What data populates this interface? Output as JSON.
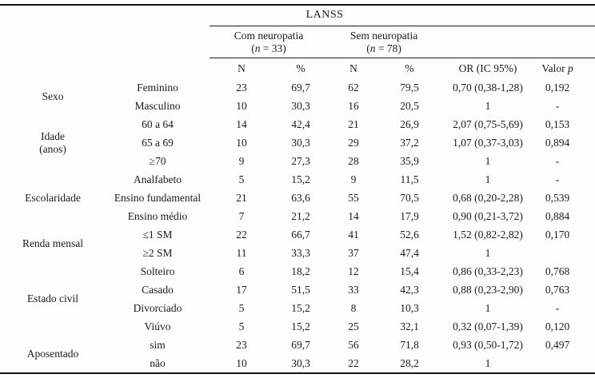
{
  "table": {
    "title": "LANSS",
    "subheaders": {
      "group1": {
        "name": "Com neuropatia",
        "n_pre": "(",
        "n_var": "n",
        "n_post": " = 33)"
      },
      "group2": {
        "name": "Sem neuropatia",
        "n_pre": "(",
        "n_var": "n",
        "n_post": " = 78)"
      }
    },
    "columns": {
      "n1": "N",
      "pct1": "%",
      "n2": "N",
      "pct2": "%",
      "or": "OR (IC 95%)",
      "valorp_pre": "Valor ",
      "valorp_var": "p"
    },
    "groups": [
      {
        "label_lines": [
          "Sexo"
        ],
        "rows": [
          {
            "label": "Feminino",
            "n1": "23",
            "pct1": "69,7",
            "n2": "62",
            "pct2": "79,5",
            "or": "0,70 (0,38-1,28)",
            "p": "0,192"
          },
          {
            "label": "Masculino",
            "n1": "10",
            "pct1": "30,3",
            "n2": "16",
            "pct2": "20,5",
            "or": "1",
            "p": "-"
          }
        ]
      },
      {
        "label_lines": [
          "Idade",
          "(anos)"
        ],
        "rows": [
          {
            "label": "60 a 64",
            "n1": "14",
            "pct1": "42,4",
            "n2": "21",
            "pct2": "26,9",
            "or": "2,07 (0,75-5,69)",
            "p": "0,153"
          },
          {
            "label": "65 a 69",
            "n1": "10",
            "pct1": "30,3",
            "n2": "29",
            "pct2": "37,2",
            "or": "1,07 (0,37-3,03)",
            "p": "0,894"
          },
          {
            "label": "≥70",
            "n1": "9",
            "pct1": "27,3",
            "n2": "28",
            "pct2": "35,9",
            "or": "1",
            "p": "-"
          }
        ]
      },
      {
        "label_lines": [
          "Escolaridade"
        ],
        "rows": [
          {
            "label": "Analfabeto",
            "n1": "5",
            "pct1": "15,2",
            "n2": "9",
            "pct2": "11,5",
            "or": "1",
            "p": "-"
          },
          {
            "label": "Ensino fundamental",
            "n1": "21",
            "pct1": "63,6",
            "n2": "55",
            "pct2": "70,5",
            "or": "0,68 (0,20-2,28)",
            "p": "0,539"
          },
          {
            "label": "Ensino médio",
            "n1": "7",
            "pct1": "21,2",
            "n2": "14",
            "pct2": "17,9",
            "or": "0,90 (0,21-3,72)",
            "p": "0,884"
          }
        ]
      },
      {
        "label_lines": [
          "Renda mensal"
        ],
        "rows": [
          {
            "label": "≤1 SM",
            "n1": "22",
            "pct1": "66,7",
            "n2": "41",
            "pct2": "52,6",
            "or": "1,52 (0,82-2,82)",
            "p": "0,170"
          },
          {
            "label": "≥2 SM",
            "n1": "11",
            "pct1": "33,3",
            "n2": "37",
            "pct2": "47,4",
            "or": "1",
            "p": ""
          }
        ]
      },
      {
        "label_lines": [
          "Estado civil"
        ],
        "rows": [
          {
            "label": "Solteiro",
            "n1": "6",
            "pct1": "18,2",
            "n2": "12",
            "pct2": "15,4",
            "or": "0,86 (0,33-2,23)",
            "p": "0,768"
          },
          {
            "label": "Casado",
            "n1": "17",
            "pct1": "51,5",
            "n2": "33",
            "pct2": "42,3",
            "or": "0,88 (0,23-2,90)",
            "p": "0,763"
          },
          {
            "label": "Divorciado",
            "n1": "5",
            "pct1": "15,2",
            "n2": "8",
            "pct2": "10,3",
            "or": "1",
            "p": "-"
          },
          {
            "label": "Viúvo",
            "n1": "5",
            "pct1": "15,2",
            "n2": "25",
            "pct2": "32,1",
            "or": "0,32 (0,07-1,39)",
            "p": "0,120"
          }
        ]
      },
      {
        "label_lines": [
          "Aposentado"
        ],
        "rows": [
          {
            "label": "sim",
            "n1": "23",
            "pct1": "69,7",
            "n2": "56",
            "pct2": "71,8",
            "or": "0,93 (0,50-1,72)",
            "p": "0,497"
          },
          {
            "label": "não",
            "n1": "10",
            "pct1": "30,3",
            "n2": "22",
            "pct2": "28,2",
            "or": "1",
            "p": ""
          }
        ]
      }
    ]
  }
}
